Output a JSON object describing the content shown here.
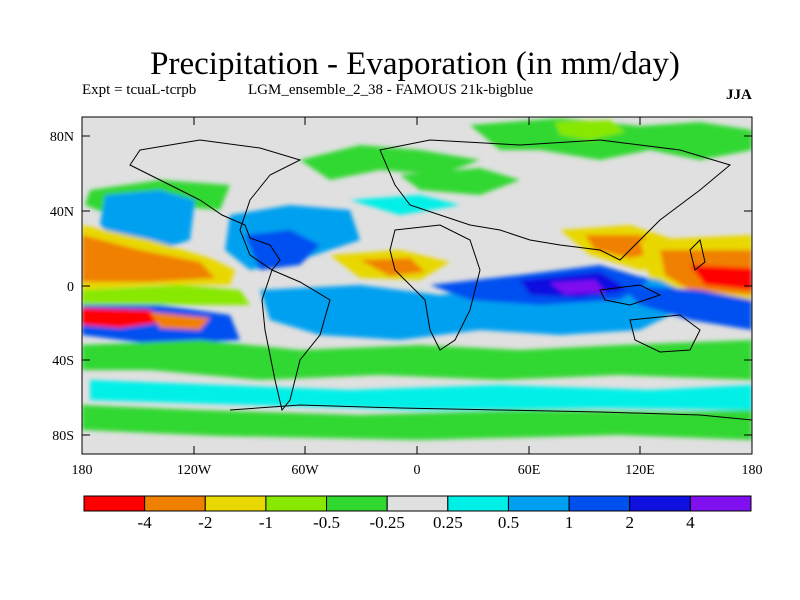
{
  "title": "Precipitation - Evaporation (in mm/day)",
  "experiment": "Expt = tcuaL-tcrpb",
  "run_name": "LGM_ensemble_2_38 - FAMOUS 21k-bigblue",
  "season": "JJA",
  "map": {
    "lat_ticks": [
      "80N",
      "40N",
      "0",
      "40S",
      "80S"
    ],
    "lon_ticks": [
      "180",
      "120W",
      "60W",
      "0",
      "60E",
      "120E",
      "180"
    ],
    "background_color": "#e0e0e0"
  },
  "colorbar": {
    "colors": [
      "#ff0000",
      "#f08000",
      "#e8d800",
      "#88e800",
      "#30d830",
      "#e0e0e0",
      "#00f0e8",
      "#00a0f0",
      "#0050f0",
      "#1010e0",
      "#8010f0"
    ],
    "labels": [
      "-4",
      "-2",
      "-1",
      "-0.5",
      "-0.25",
      "0.25",
      "0.5",
      "1",
      "2",
      "4"
    ]
  }
}
